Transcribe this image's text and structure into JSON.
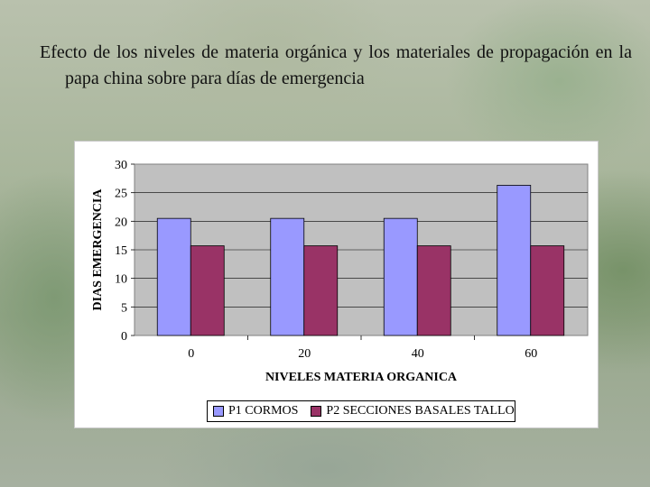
{
  "slide": {
    "title": "Efecto de los niveles de materia orgánica y los materiales de propagación en la papa china sobre para días de emergencia"
  },
  "chart_data": {
    "type": "bar",
    "categories": [
      "0",
      "20",
      "40",
      "60"
    ],
    "series": [
      {
        "name": "P1 CORMOS",
        "values": [
          20.5,
          20.5,
          20.5,
          26.3
        ],
        "color": "#9999ff"
      },
      {
        "name": "P2 SECCIONES BASALES TALLO",
        "values": [
          15.7,
          15.7,
          15.7,
          15.7
        ],
        "color": "#993366"
      }
    ],
    "xlabel": "NIVELES MATERIA ORGANICA",
    "ylabel": "DIAS EMERGENCIA",
    "ylim": [
      0,
      30
    ],
    "yticks": [
      0,
      5,
      10,
      15,
      20,
      25,
      30
    ],
    "grid": true,
    "plot_background": "#c0c0c0",
    "legend_position": "bottom"
  }
}
